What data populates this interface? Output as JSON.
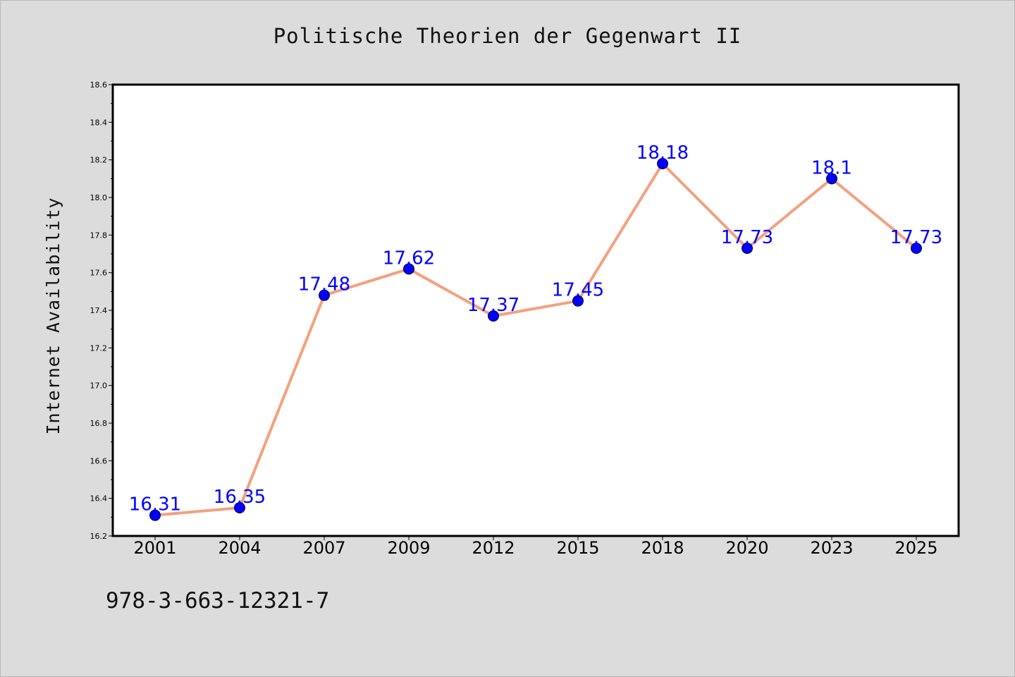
{
  "chart_data": {
    "type": "line",
    "title": "Politische Theorien der Gegenwart II",
    "xlabel": "",
    "ylabel": "Internet Availability",
    "categories": [
      "2001",
      "2004",
      "2007",
      "2009",
      "2012",
      "2015",
      "2018",
      "2020",
      "2023",
      "2025"
    ],
    "series": [
      {
        "values": [
          16.31,
          16.35,
          17.48,
          17.62,
          17.37,
          17.45,
          18.18,
          17.73,
          18.1,
          17.73
        ],
        "labels": [
          "16.31",
          "16.35",
          "17.48",
          "17.62",
          "17.37",
          "17.45",
          "18.18",
          "17.73",
          "18.1",
          "17.73"
        ],
        "line_color": "#f4a07e",
        "marker_color": "#0000ff"
      }
    ],
    "ylim": [
      16.2,
      18.6
    ],
    "yticks": [
      "16.2",
      "16.4",
      "16.6",
      "16.8",
      "17.0",
      "17.2",
      "17.4",
      "17.6",
      "17.8",
      "18.0",
      "18.2",
      "18.4",
      "18.6"
    ],
    "grid": false,
    "legend": "none",
    "annotation": "978-3-663-12321-7"
  }
}
